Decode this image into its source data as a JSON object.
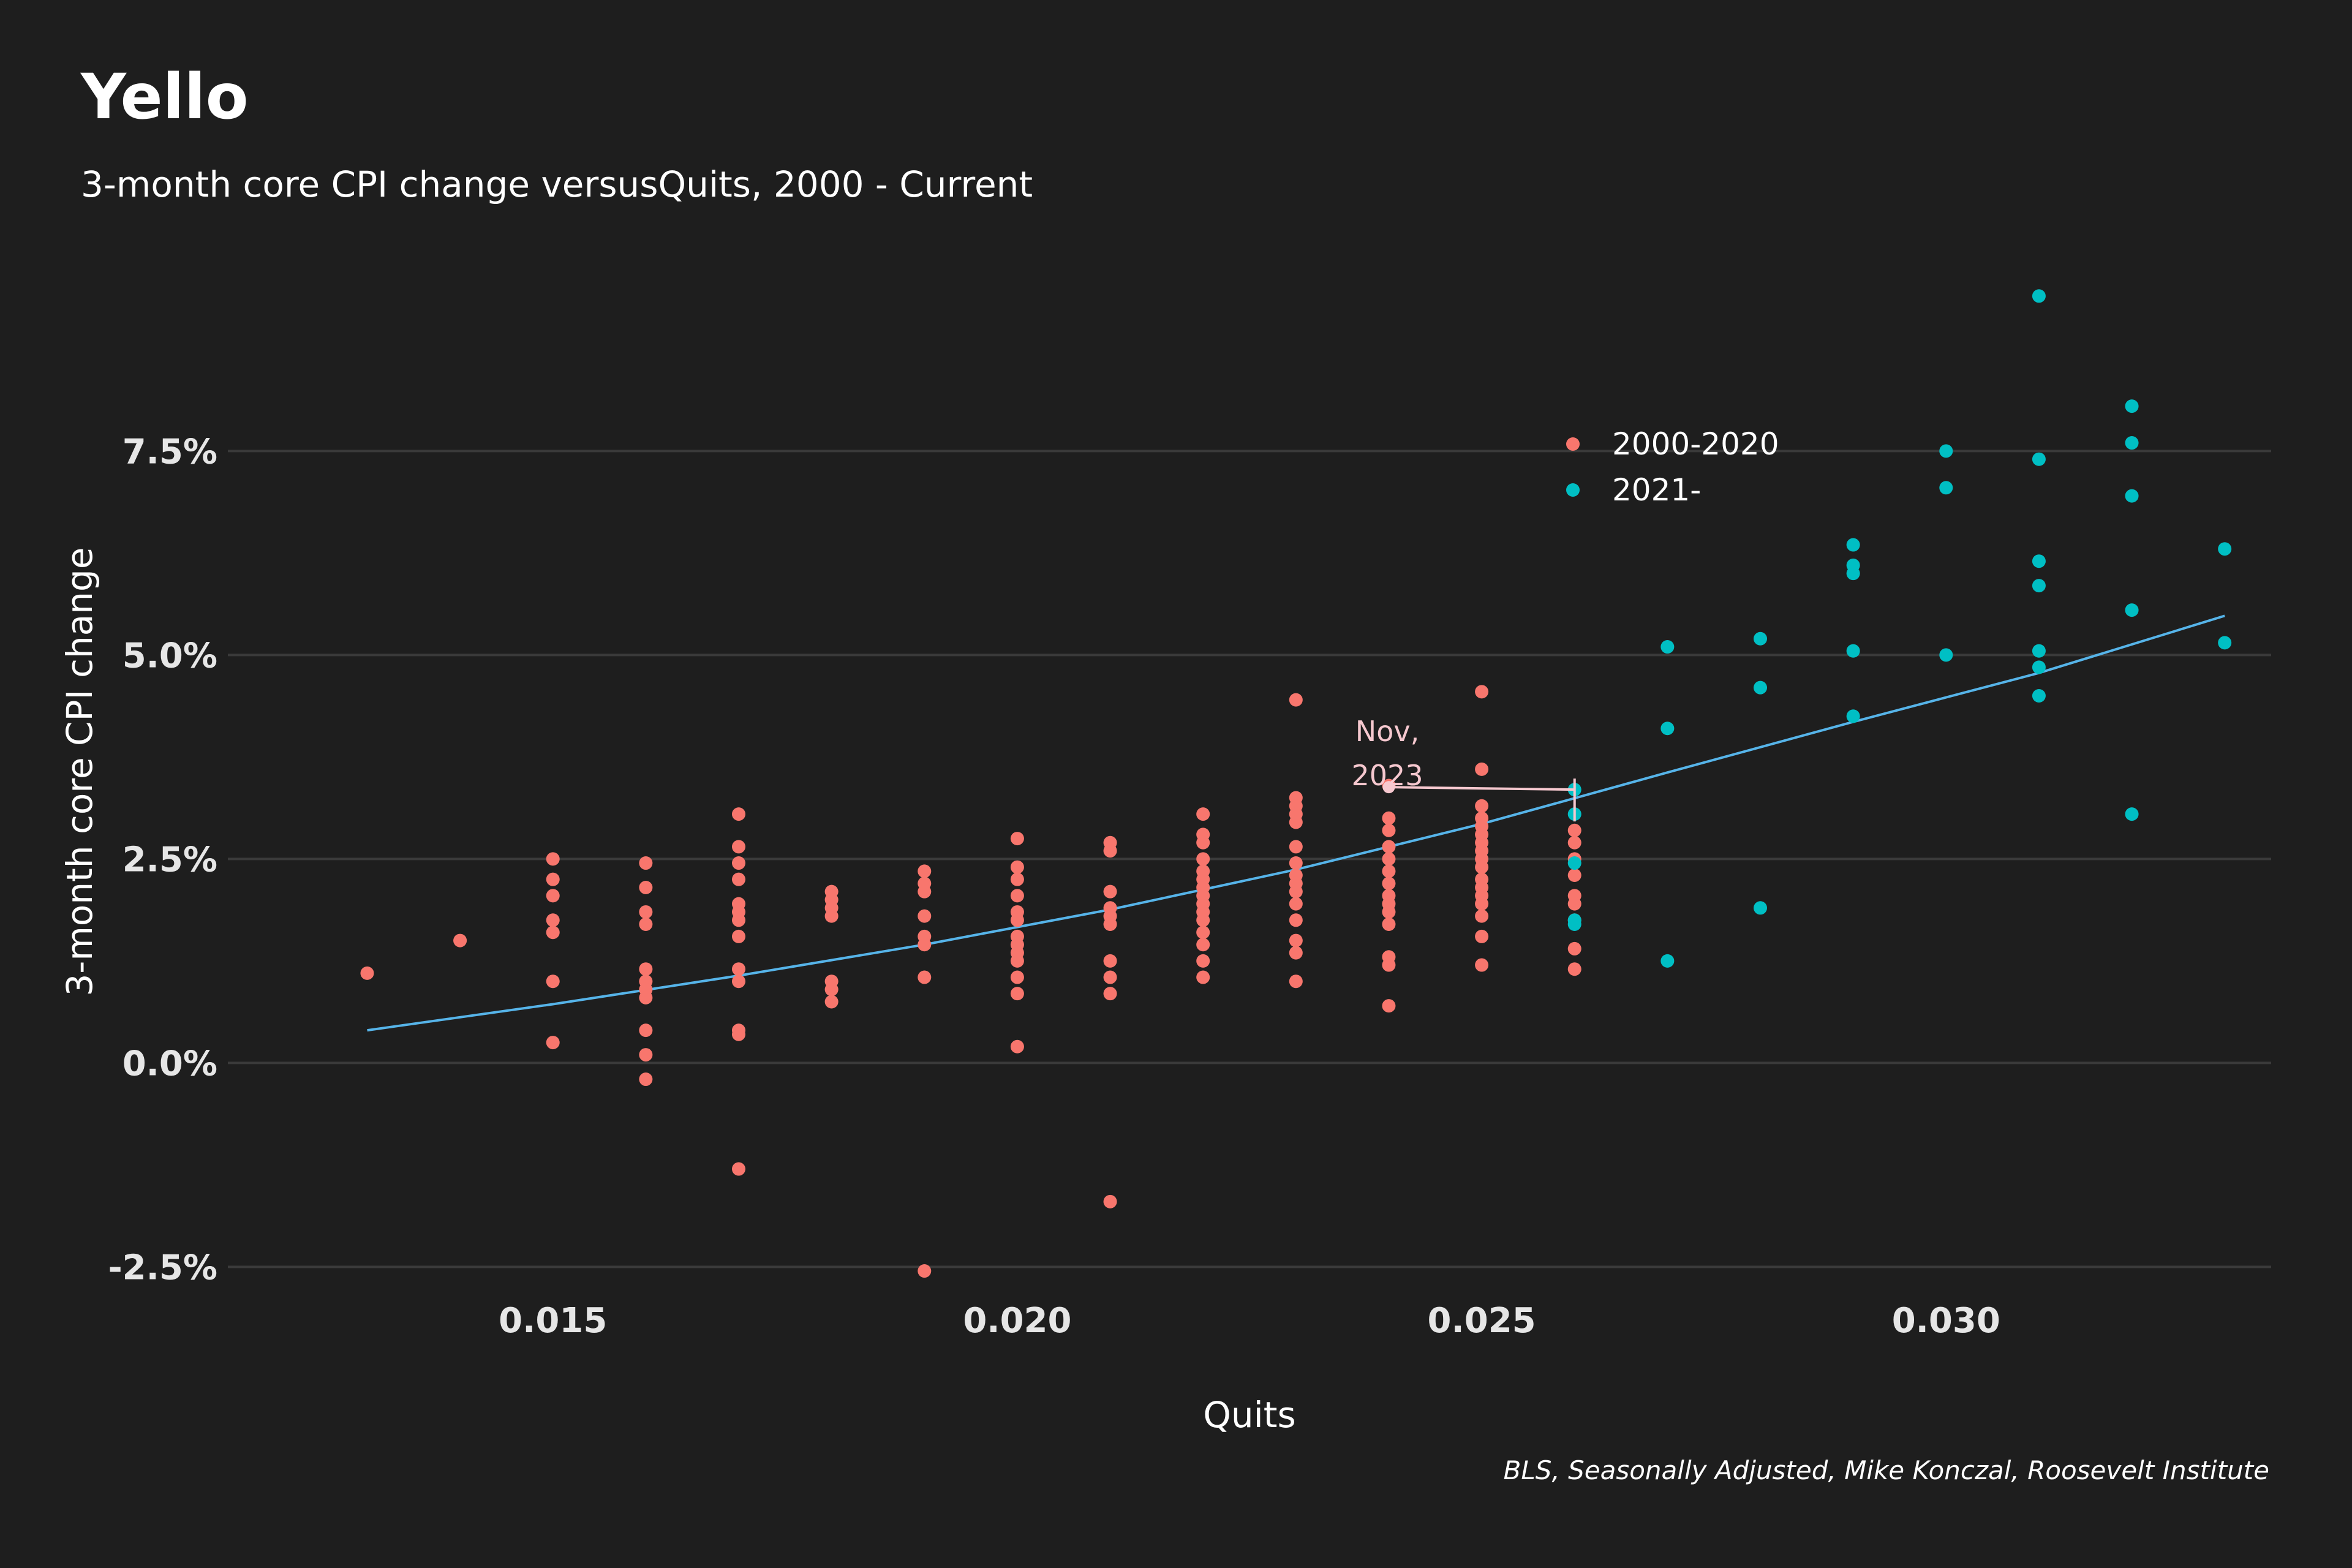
{
  "header": {
    "title": "Yello",
    "subtitle": "3-month core CPI change versusQuits, 2000 - Current"
  },
  "caption": "BLS, Seasonally Adjusted, Mike Konczal, Roosevelt Institute",
  "colors": {
    "background": "#1e1e1e",
    "series_2000_2020": "#f8766d",
    "series_2021": "#00bfc4",
    "trend": "#56b4e9",
    "annotation": "#f6c8cf",
    "grid": "#3a3a3a"
  },
  "chart_data": {
    "type": "scatter",
    "title": "Yello",
    "subtitle": "3-month core CPI change versusQuits, 2000 - Current",
    "xlabel": "Quits",
    "ylabel": "3-month core CPI change",
    "xlim": [
      0.0115,
      0.0335
    ],
    "ylim": [
      -3.0,
      9.8
    ],
    "x_ticks": [
      0.015,
      0.02,
      0.025,
      0.03
    ],
    "x_tick_labels": [
      "0.015",
      "0.020",
      "0.025",
      "0.030"
    ],
    "y_ticks": [
      -2.5,
      0.0,
      2.5,
      5.0,
      7.5
    ],
    "y_tick_labels": [
      "-2.5%",
      "0.0%",
      "2.5%",
      "5.0%",
      "7.5%"
    ],
    "grid": "horizontal",
    "legend": {
      "placement": "top-right",
      "entries": [
        "2000-2020",
        "2021-"
      ]
    },
    "series": [
      {
        "name": "2000-2020",
        "color": "#f8766d",
        "points": [
          [
            0.013,
            1.1
          ],
          [
            0.014,
            1.5
          ],
          [
            0.015,
            2.5
          ],
          [
            0.015,
            2.25
          ],
          [
            0.015,
            2.05
          ],
          [
            0.015,
            1.75
          ],
          [
            0.015,
            1.6
          ],
          [
            0.015,
            1.0
          ],
          [
            0.015,
            0.25
          ],
          [
            0.016,
            2.45
          ],
          [
            0.016,
            2.15
          ],
          [
            0.016,
            1.85
          ],
          [
            0.016,
            1.7
          ],
          [
            0.016,
            1.15
          ],
          [
            0.016,
            1.0
          ],
          [
            0.016,
            0.9
          ],
          [
            0.016,
            0.8
          ],
          [
            0.016,
            0.4
          ],
          [
            0.016,
            0.1
          ],
          [
            0.016,
            -0.2
          ],
          [
            0.017,
            3.05
          ],
          [
            0.017,
            2.65
          ],
          [
            0.017,
            2.45
          ],
          [
            0.017,
            2.25
          ],
          [
            0.017,
            1.95
          ],
          [
            0.017,
            1.85
          ],
          [
            0.017,
            1.75
          ],
          [
            0.017,
            1.55
          ],
          [
            0.017,
            1.15
          ],
          [
            0.017,
            1.0
          ],
          [
            0.017,
            0.4
          ],
          [
            0.017,
            0.35
          ],
          [
            0.017,
            -1.3
          ],
          [
            0.018,
            2.1
          ],
          [
            0.018,
            2.0
          ],
          [
            0.018,
            1.9
          ],
          [
            0.018,
            1.8
          ],
          [
            0.018,
            1.0
          ],
          [
            0.018,
            0.9
          ],
          [
            0.018,
            0.75
          ],
          [
            0.019,
            2.35
          ],
          [
            0.019,
            2.2
          ],
          [
            0.019,
            2.1
          ],
          [
            0.019,
            1.8
          ],
          [
            0.019,
            1.55
          ],
          [
            0.019,
            1.45
          ],
          [
            0.019,
            1.05
          ],
          [
            0.019,
            -2.55
          ],
          [
            0.02,
            2.75
          ],
          [
            0.02,
            2.4
          ],
          [
            0.02,
            2.25
          ],
          [
            0.02,
            2.05
          ],
          [
            0.02,
            1.85
          ],
          [
            0.02,
            1.75
          ],
          [
            0.02,
            1.55
          ],
          [
            0.02,
            1.45
          ],
          [
            0.02,
            1.35
          ],
          [
            0.02,
            1.25
          ],
          [
            0.02,
            1.05
          ],
          [
            0.02,
            0.85
          ],
          [
            0.02,
            0.2
          ],
          [
            0.021,
            2.7
          ],
          [
            0.021,
            2.6
          ],
          [
            0.021,
            2.1
          ],
          [
            0.021,
            1.9
          ],
          [
            0.021,
            1.8
          ],
          [
            0.021,
            1.7
          ],
          [
            0.021,
            1.25
          ],
          [
            0.021,
            1.05
          ],
          [
            0.021,
            0.85
          ],
          [
            0.021,
            -1.7
          ],
          [
            0.022,
            3.05
          ],
          [
            0.022,
            2.8
          ],
          [
            0.022,
            2.7
          ],
          [
            0.022,
            2.5
          ],
          [
            0.022,
            2.35
          ],
          [
            0.022,
            2.25
          ],
          [
            0.022,
            2.15
          ],
          [
            0.022,
            2.05
          ],
          [
            0.022,
            1.95
          ],
          [
            0.022,
            1.85
          ],
          [
            0.022,
            1.75
          ],
          [
            0.022,
            1.6
          ],
          [
            0.022,
            1.45
          ],
          [
            0.022,
            1.25
          ],
          [
            0.022,
            1.05
          ],
          [
            0.023,
            4.45
          ],
          [
            0.023,
            3.25
          ],
          [
            0.023,
            3.15
          ],
          [
            0.023,
            3.05
          ],
          [
            0.023,
            2.95
          ],
          [
            0.023,
            2.65
          ],
          [
            0.023,
            2.45
          ],
          [
            0.023,
            2.3
          ],
          [
            0.023,
            2.2
          ],
          [
            0.023,
            2.1
          ],
          [
            0.023,
            1.95
          ],
          [
            0.023,
            1.75
          ],
          [
            0.023,
            1.5
          ],
          [
            0.023,
            1.35
          ],
          [
            0.023,
            1.0
          ],
          [
            0.024,
            3.4
          ],
          [
            0.024,
            3.0
          ],
          [
            0.024,
            2.85
          ],
          [
            0.024,
            2.65
          ],
          [
            0.024,
            2.5
          ],
          [
            0.024,
            2.35
          ],
          [
            0.024,
            2.2
          ],
          [
            0.024,
            2.05
          ],
          [
            0.024,
            1.95
          ],
          [
            0.024,
            1.85
          ],
          [
            0.024,
            1.7
          ],
          [
            0.024,
            1.3
          ],
          [
            0.024,
            1.2
          ],
          [
            0.024,
            0.7
          ],
          [
            0.025,
            4.55
          ],
          [
            0.025,
            3.6
          ],
          [
            0.025,
            3.15
          ],
          [
            0.025,
            3.0
          ],
          [
            0.025,
            2.9
          ],
          [
            0.025,
            2.8
          ],
          [
            0.025,
            2.7
          ],
          [
            0.025,
            2.6
          ],
          [
            0.025,
            2.5
          ],
          [
            0.025,
            2.4
          ],
          [
            0.025,
            2.25
          ],
          [
            0.025,
            2.15
          ],
          [
            0.025,
            2.05
          ],
          [
            0.025,
            1.95
          ],
          [
            0.025,
            1.8
          ],
          [
            0.025,
            1.55
          ],
          [
            0.025,
            1.2
          ],
          [
            0.026,
            2.85
          ],
          [
            0.026,
            2.7
          ],
          [
            0.026,
            2.5
          ],
          [
            0.026,
            2.3
          ],
          [
            0.026,
            2.05
          ],
          [
            0.026,
            1.95
          ],
          [
            0.026,
            1.75
          ],
          [
            0.026,
            1.4
          ],
          [
            0.026,
            1.15
          ]
        ]
      },
      {
        "name": "2021-",
        "color": "#00bfc4",
        "points": [
          [
            0.026,
            3.35
          ],
          [
            0.026,
            3.05
          ],
          [
            0.026,
            2.45
          ],
          [
            0.026,
            1.75
          ],
          [
            0.026,
            1.7
          ],
          [
            0.027,
            5.1
          ],
          [
            0.027,
            4.1
          ],
          [
            0.027,
            1.25
          ],
          [
            0.028,
            5.2
          ],
          [
            0.028,
            4.6
          ],
          [
            0.028,
            1.9
          ],
          [
            0.029,
            6.35
          ],
          [
            0.029,
            6.1
          ],
          [
            0.029,
            6.0
          ],
          [
            0.029,
            5.05
          ],
          [
            0.029,
            4.25
          ],
          [
            0.03,
            7.5
          ],
          [
            0.03,
            7.05
          ],
          [
            0.03,
            5.0
          ],
          [
            0.031,
            9.4
          ],
          [
            0.031,
            7.4
          ],
          [
            0.031,
            6.15
          ],
          [
            0.031,
            5.85
          ],
          [
            0.031,
            5.05
          ],
          [
            0.031,
            4.85
          ],
          [
            0.031,
            4.5
          ],
          [
            0.032,
            8.05
          ],
          [
            0.032,
            7.6
          ],
          [
            0.032,
            6.95
          ],
          [
            0.032,
            5.55
          ],
          [
            0.032,
            3.05
          ],
          [
            0.033,
            6.3
          ],
          [
            0.033,
            5.15
          ]
        ]
      }
    ],
    "trend_line": {
      "points": [
        [
          0.013,
          0.4
        ],
        [
          0.015,
          0.72
        ],
        [
          0.017,
          1.07
        ],
        [
          0.019,
          1.45
        ],
        [
          0.021,
          1.88
        ],
        [
          0.023,
          2.37
        ],
        [
          0.025,
          2.93
        ],
        [
          0.027,
          3.56
        ],
        [
          0.029,
          4.18
        ],
        [
          0.031,
          4.78
        ],
        [
          0.033,
          5.48
        ]
      ]
    },
    "annotations": [
      {
        "text_lines": [
          "Nov,",
          "2023"
        ],
        "from": [
          0.024,
          3.38
        ],
        "to": [
          0.026,
          3.35
        ]
      }
    ]
  }
}
